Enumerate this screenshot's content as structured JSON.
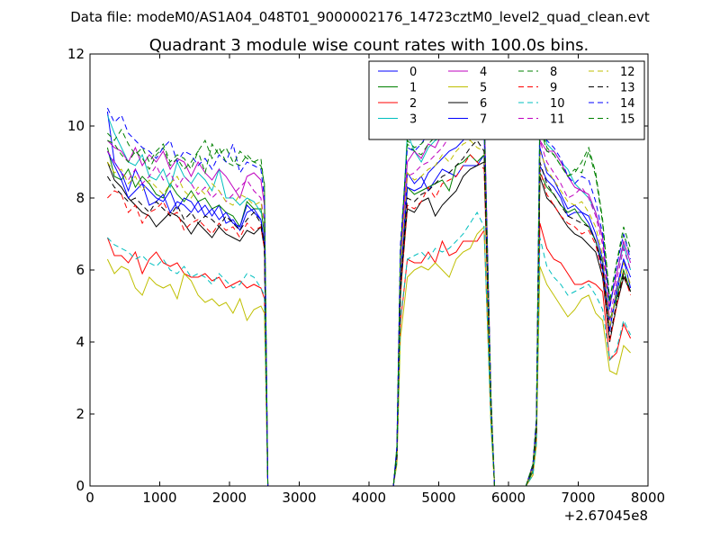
{
  "suptitle": "Data file: modeM0/AS1A04_048T01_9000002176_14723cztM0_level2_quad_clean.evt",
  "chart_data": {
    "type": "line",
    "title": "Quadrant 3 module wise count rates with 100.0s bins.",
    "xlabel": "",
    "ylabel": "",
    "xlim": [
      0,
      8000
    ],
    "ylim": [
      0,
      12
    ],
    "x_offset_label": "+2.67045e8",
    "x_ticks": [
      0,
      1000,
      2000,
      3000,
      4000,
      5000,
      6000,
      7000,
      8000
    ],
    "y_ticks": [
      0,
      2,
      4,
      6,
      8,
      10,
      12
    ],
    "grid": false,
    "legend_position": "top-right",
    "legend_columns": 4,
    "series_colors": [
      "#0000ff",
      "#008000",
      "#ff0000",
      "#00bfbf",
      "#bf00bf",
      "#bfbf00",
      "#000000",
      "#0000ff",
      "#008000",
      "#ff0000",
      "#00bfbf",
      "#bf00bf",
      "#bfbf00",
      "#000000",
      "#0000ff",
      "#008000"
    ],
    "series_dashed": [
      false,
      false,
      false,
      false,
      false,
      false,
      false,
      false,
      true,
      true,
      true,
      true,
      true,
      true,
      true,
      true
    ],
    "series_names": [
      "0",
      "1",
      "2",
      "3",
      "4",
      "5",
      "6",
      "7",
      "8",
      "9",
      "10",
      "11",
      "12",
      "13",
      "14",
      "15"
    ],
    "x": [
      250,
      350,
      450,
      550,
      650,
      750,
      850,
      950,
      1050,
      1150,
      1250,
      1350,
      1450,
      1550,
      1650,
      1750,
      1850,
      1950,
      2050,
      2150,
      2250,
      2350,
      2450,
      2500,
      2550,
      2600,
      4350,
      4400,
      4450,
      4550,
      4650,
      4750,
      4850,
      4950,
      5050,
      5150,
      5250,
      5350,
      5450,
      5550,
      5650,
      5750,
      5800,
      6250,
      6350,
      6400,
      6450,
      6550,
      6650,
      6750,
      6850,
      6950,
      7050,
      7150,
      7250,
      7350,
      7450,
      7550,
      7650,
      7750
    ],
    "series": [
      {
        "values": [
          10.4,
          9.0,
          8.7,
          8.2,
          8.8,
          8.4,
          8.2,
          8.0,
          7.9,
          8.2,
          7.7,
          8.0,
          7.9,
          7.6,
          7.8,
          7.5,
          7.8,
          7.3,
          7.4,
          7.1,
          7.6,
          7.7,
          7.4,
          6.7,
          0,
          0,
          0,
          0.8,
          5.5,
          8.7,
          8.4,
          8.6,
          8.2,
          8.5,
          8.8,
          8.7,
          8.6,
          8.9,
          8.9,
          8.9,
          9.2,
          2,
          0,
          0,
          0.5,
          1.5,
          8.9,
          8.5,
          8.3,
          8.0,
          7.5,
          7.6,
          7.6,
          7.3,
          6.8,
          6.0,
          4.4,
          5.3,
          6.3,
          5.5
        ]
      },
      {
        "values": [
          9.4,
          8.6,
          8.5,
          8.8,
          8.3,
          8.6,
          8.4,
          8.1,
          8.0,
          8.4,
          8.1,
          7.9,
          8.2,
          7.9,
          8.0,
          7.7,
          7.8,
          7.6,
          7.5,
          7.2,
          7.9,
          7.7,
          7.7,
          7.0,
          0,
          0,
          0,
          0.8,
          5.2,
          8.3,
          8.1,
          8.2,
          8.3,
          8.4,
          8.5,
          8.2,
          8.9,
          9.0,
          9.2,
          9.0,
          9.2,
          2,
          0,
          0,
          0.4,
          1.5,
          8.7,
          8.3,
          8.1,
          7.8,
          7.6,
          7.7,
          7.4,
          7.2,
          6.8,
          6.2,
          4.6,
          5.2,
          6.0,
          5.4
        ]
      },
      {
        "values": [
          6.9,
          6.4,
          6.4,
          6.2,
          6.5,
          5.9,
          6.3,
          6.5,
          6.2,
          6.1,
          6.2,
          5.9,
          5.8,
          5.8,
          5.9,
          5.7,
          5.8,
          5.5,
          5.6,
          5.7,
          5.5,
          5.6,
          5.5,
          5.2,
          0,
          0,
          0,
          0.7,
          4.5,
          6.3,
          6.2,
          6.2,
          6.5,
          6.2,
          6.8,
          6.4,
          6.5,
          6.8,
          6.8,
          6.8,
          7.1,
          1.8,
          0,
          0,
          0.3,
          1.2,
          7.3,
          6.6,
          6.3,
          6.2,
          5.9,
          5.6,
          5.6,
          5.7,
          5.6,
          5.4,
          3.5,
          3.7,
          4.5,
          4.1
        ]
      },
      {
        "values": [
          10.3,
          9.8,
          9.4,
          9.0,
          8.9,
          9.2,
          8.6,
          8.5,
          8.8,
          8.3,
          9.0,
          8.6,
          8.4,
          8.7,
          8.5,
          8.2,
          8.8,
          8.0,
          8.0,
          7.8,
          8.0,
          7.9,
          7.6,
          7.4,
          0,
          0,
          0,
          0.9,
          6.2,
          9.8,
          9.3,
          9.0,
          9.4,
          9.6,
          9.7,
          9.8,
          10.0,
          10.4,
          10.6,
          10.4,
          10.2,
          2.3,
          0,
          0,
          0.6,
          1.8,
          10.8,
          9.5,
          9.3,
          9.0,
          8.8,
          8.4,
          8.2,
          8.0,
          7.6,
          6.9,
          5.0,
          5.9,
          6.7,
          6.0
        ]
      },
      {
        "values": [
          9.6,
          9.4,
          9.3,
          9.0,
          9.4,
          8.9,
          9.2,
          9.0,
          9.3,
          8.8,
          9.1,
          9.0,
          8.6,
          9.0,
          8.7,
          8.5,
          8.8,
          8.6,
          8.3,
          8.0,
          8.6,
          8.7,
          8.5,
          7.8,
          0,
          0,
          0,
          1.0,
          6.3,
          9.0,
          9.3,
          9.1,
          9.5,
          9.4,
          9.8,
          9.9,
          10.3,
          10.8,
          11.2,
          11.0,
          10.6,
          2.4,
          0,
          0,
          0.6,
          1.8,
          9.6,
          9.3,
          9.3,
          9.0,
          8.6,
          8.3,
          8.2,
          8.1,
          7.6,
          6.9,
          5.0,
          5.9,
          6.8,
          6.2
        ]
      },
      {
        "values": [
          6.3,
          5.9,
          6.1,
          6.0,
          5.5,
          5.3,
          5.8,
          5.6,
          5.5,
          5.6,
          5.2,
          5.9,
          5.7,
          5.3,
          5.1,
          5.2,
          5.0,
          5.1,
          4.8,
          5.2,
          4.6,
          4.9,
          5.0,
          4.8,
          0,
          0,
          0,
          0.6,
          4.1,
          5.8,
          6.0,
          6.1,
          6.0,
          6.2,
          6.0,
          5.8,
          6.3,
          6.5,
          6.6,
          7.0,
          7.2,
          1.6,
          0,
          0,
          0.3,
          1.1,
          6.1,
          5.6,
          5.3,
          5.0,
          4.7,
          4.9,
          5.2,
          5.3,
          4.8,
          4.6,
          3.2,
          3.1,
          3.9,
          3.7
        ]
      },
      {
        "values": [
          9.0,
          8.5,
          8.3,
          8.0,
          7.8,
          7.6,
          7.5,
          7.2,
          7.4,
          7.6,
          7.5,
          7.3,
          7.0,
          7.3,
          7.1,
          6.9,
          7.2,
          7.0,
          6.9,
          6.8,
          7.1,
          7.0,
          7.2,
          6.6,
          0,
          0,
          0,
          0.8,
          5.4,
          7.7,
          7.6,
          7.9,
          8.0,
          7.5,
          7.8,
          8.0,
          8.2,
          8.6,
          8.8,
          8.9,
          9.0,
          2.0,
          0,
          0,
          0.5,
          1.5,
          8.6,
          8.0,
          7.8,
          7.5,
          7.2,
          7.0,
          6.9,
          6.7,
          6.5,
          5.8,
          4.0,
          5.0,
          5.8,
          5.4
        ]
      },
      {
        "values": [
          9.3,
          8.9,
          8.5,
          8.0,
          8.2,
          8.4,
          7.8,
          7.9,
          8.1,
          7.6,
          7.9,
          7.8,
          7.6,
          7.9,
          7.5,
          7.7,
          7.4,
          7.6,
          7.3,
          7.2,
          7.8,
          7.6,
          7.4,
          6.8,
          0,
          0,
          0,
          0.9,
          5.8,
          8.3,
          8.2,
          8.3,
          8.7,
          8.9,
          9.1,
          9.3,
          9.4,
          9.6,
          9.9,
          10.1,
          9.8,
          2.1,
          0,
          0,
          0.5,
          1.6,
          9.4,
          8.7,
          8.5,
          8.1,
          7.7,
          7.8,
          7.6,
          7.5,
          7.0,
          6.3,
          4.3,
          5.5,
          6.3,
          5.8
        ]
      },
      {
        "values": [
          9.6,
          9.5,
          9.2,
          9.0,
          9.3,
          9.1,
          8.8,
          9.2,
          9.4,
          8.9,
          9.1,
          8.8,
          9.0,
          9.3,
          8.7,
          9.5,
          9.2,
          9.4,
          9.0,
          8.9,
          9.2,
          9.0,
          9.1,
          8.3,
          0,
          0,
          0,
          1.1,
          6.6,
          9.5,
          9.3,
          9.2,
          9.5,
          9.7,
          9.9,
          10.1,
          10.2,
          10.3,
          10.5,
          10.4,
          10.2,
          2.5,
          0,
          0,
          0.6,
          1.8,
          10.0,
          9.3,
          9.2,
          8.9,
          8.6,
          8.7,
          9.0,
          9.4,
          8.7,
          7.4,
          5.2,
          6.2,
          7.0,
          6.4
        ]
      },
      {
        "values": [
          8.0,
          8.2,
          8.1,
          7.6,
          7.8,
          7.3,
          7.6,
          7.7,
          7.9,
          7.5,
          7.6,
          7.1,
          7.3,
          7.4,
          7.2,
          7.0,
          7.3,
          7.1,
          7.2,
          6.9,
          7.3,
          7.1,
          7.2,
          6.6,
          0,
          0,
          0,
          0.8,
          5.3,
          7.8,
          7.7,
          7.9,
          8.3,
          8.0,
          8.4,
          8.5,
          8.6,
          8.9,
          9.2,
          9.0,
          8.8,
          2.0,
          0,
          0,
          0.5,
          1.4,
          8.8,
          8.1,
          7.8,
          7.5,
          7.3,
          7.2,
          7.0,
          7.1,
          6.7,
          5.9,
          4.0,
          5.0,
          5.9,
          5.3
        ]
      },
      {
        "values": [
          6.9,
          6.7,
          6.6,
          6.5,
          6.3,
          6.4,
          6.2,
          6.1,
          6.3,
          6.0,
          5.9,
          6.1,
          5.8,
          5.9,
          5.8,
          5.6,
          5.9,
          5.7,
          5.5,
          5.6,
          5.9,
          5.8,
          5.5,
          5.3,
          0,
          0,
          0,
          0.7,
          4.6,
          6.3,
          6.4,
          6.5,
          6.3,
          6.6,
          6.5,
          6.6,
          6.8,
          7.0,
          7.3,
          7.6,
          7.2,
          1.7,
          0,
          0,
          0.3,
          1.2,
          6.9,
          6.1,
          5.8,
          5.6,
          5.3,
          5.4,
          5.5,
          5.6,
          5.3,
          4.9,
          3.5,
          3.8,
          4.6,
          4.2
        ]
      },
      {
        "values": [
          9.3,
          9.0,
          8.7,
          8.5,
          8.8,
          8.4,
          8.6,
          8.9,
          8.5,
          8.7,
          8.3,
          8.6,
          8.4,
          8.1,
          8.3,
          8.0,
          8.2,
          7.9,
          8.1,
          8.3,
          8.5,
          8.2,
          8.0,
          7.3,
          0,
          0,
          0,
          0.9,
          5.9,
          8.6,
          8.7,
          8.9,
          9.0,
          9.2,
          9.4,
          9.7,
          9.9,
          10.1,
          10.4,
          10.6,
          10.2,
          2.3,
          0,
          0,
          0.5,
          1.7,
          9.6,
          9.0,
          8.7,
          8.4,
          8.0,
          8.1,
          8.3,
          8.0,
          7.5,
          6.7,
          4.6,
          5.7,
          6.6,
          6.0
        ]
      },
      {
        "values": [
          9.0,
          8.7,
          8.8,
          8.4,
          8.6,
          8.2,
          8.5,
          8.3,
          8.1,
          8.4,
          8.6,
          8.2,
          8.0,
          8.3,
          8.1,
          8.4,
          8.2,
          7.9,
          7.8,
          8.1,
          8.0,
          7.8,
          7.9,
          7.2,
          0,
          0,
          0,
          0.9,
          5.9,
          8.7,
          8.5,
          8.6,
          8.8,
          8.9,
          9.2,
          9.0,
          9.3,
          9.5,
          9.6,
          9.4,
          9.3,
          2.2,
          0,
          0,
          0.5,
          1.6,
          9.3,
          8.8,
          8.5,
          8.2,
          7.9,
          7.8,
          7.9,
          7.6,
          7.2,
          6.4,
          4.4,
          5.4,
          6.2,
          5.6
        ]
      },
      {
        "values": [
          8.6,
          8.3,
          8.1,
          7.9,
          8.0,
          7.8,
          7.6,
          7.9,
          7.7,
          7.5,
          7.8,
          7.4,
          7.6,
          7.3,
          7.5,
          7.4,
          7.2,
          7.5,
          7.3,
          7.1,
          7.4,
          7.6,
          7.3,
          6.7,
          0,
          0,
          0,
          0.8,
          5.5,
          8.0,
          7.9,
          8.1,
          8.2,
          8.4,
          8.6,
          8.7,
          8.9,
          9.1,
          9.4,
          9.6,
          9.3,
          2.1,
          0,
          0,
          0.5,
          1.5,
          9.0,
          8.4,
          8.1,
          7.8,
          7.5,
          7.4,
          7.3,
          7.2,
          6.8,
          6.1,
          4.1,
          5.1,
          5.9,
          5.4
        ]
      },
      {
        "values": [
          10.5,
          10.1,
          10.3,
          9.8,
          9.6,
          9.4,
          9.3,
          9.1,
          9.4,
          9.6,
          9.0,
          9.3,
          9.2,
          8.9,
          9.1,
          8.8,
          9.2,
          9.0,
          9.5,
          8.7,
          9.0,
          8.9,
          8.8,
          8.0,
          0,
          0,
          0,
          1.1,
          6.7,
          9.4,
          9.3,
          9.5,
          9.8,
          10.0,
          10.2,
          10.3,
          10.7,
          10.9,
          11.3,
          10.8,
          10.5,
          2.4,
          0,
          0,
          0.6,
          1.9,
          10.4,
          9.6,
          9.4,
          9.1,
          8.6,
          8.4,
          8.6,
          8.5,
          7.9,
          7.0,
          4.9,
          6.1,
          7.0,
          6.3
        ]
      },
      {
        "values": [
          9.8,
          9.6,
          9.9,
          9.5,
          9.2,
          9.4,
          9.0,
          9.3,
          9.5,
          9.0,
          9.2,
          9.1,
          8.8,
          9.3,
          9.6,
          9.1,
          9.4,
          9.0,
          8.9,
          9.3,
          9.1,
          9.0,
          8.9,
          8.4,
          0,
          0,
          0,
          1.1,
          6.5,
          9.6,
          9.4,
          9.5,
          9.7,
          9.9,
          10.0,
          10.2,
          10.4,
          10.6,
          10.8,
          10.6,
          10.3,
          2.4,
          0,
          0,
          0.6,
          1.8,
          10.2,
          9.4,
          9.2,
          8.9,
          8.6,
          8.8,
          8.7,
          9.3,
          8.6,
          7.3,
          5.1,
          6.2,
          7.2,
          6.6
        ]
      }
    ]
  }
}
